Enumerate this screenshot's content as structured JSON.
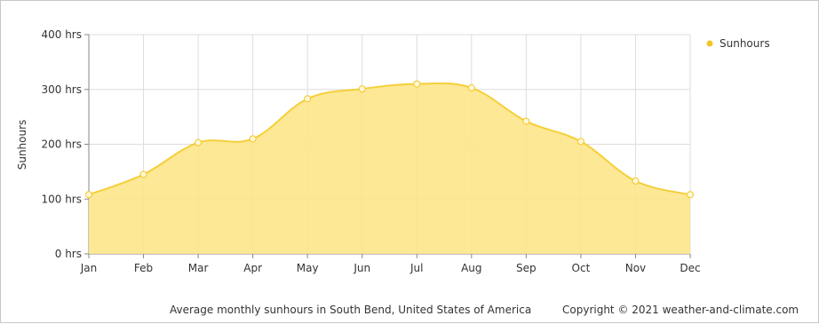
{
  "chart_data": {
    "type": "area",
    "categories": [
      "Jan",
      "Feb",
      "Mar",
      "Apr",
      "May",
      "Jun",
      "Jul",
      "Aug",
      "Sep",
      "Oct",
      "Nov",
      "Dec"
    ],
    "series": [
      {
        "name": "Sunhours",
        "values": [
          108,
          145,
          203,
          210,
          283,
          301,
          310,
          303,
          242,
          205,
          133,
          108
        ]
      }
    ],
    "xlabel": "",
    "ylabel": "Sunhours",
    "ylim": [
      0,
      400
    ],
    "yticks": [
      0,
      100,
      200,
      300,
      400
    ],
    "ytick_labels": [
      "0 hrs",
      "100 hrs",
      "200 hrs",
      "300 hrs",
      "400 hrs"
    ],
    "grid": true,
    "legend_position": "top-right",
    "colors": {
      "fill": "#fde68a",
      "line": "#f5cf3a",
      "marker": "#f3c627",
      "grid": "#dddddd",
      "axis": "#888888"
    }
  },
  "footer_caption": "Average monthly sunhours in South Bend, United States of America",
  "footer_copyright": "Copyright © 2021  weather-and-climate.com"
}
